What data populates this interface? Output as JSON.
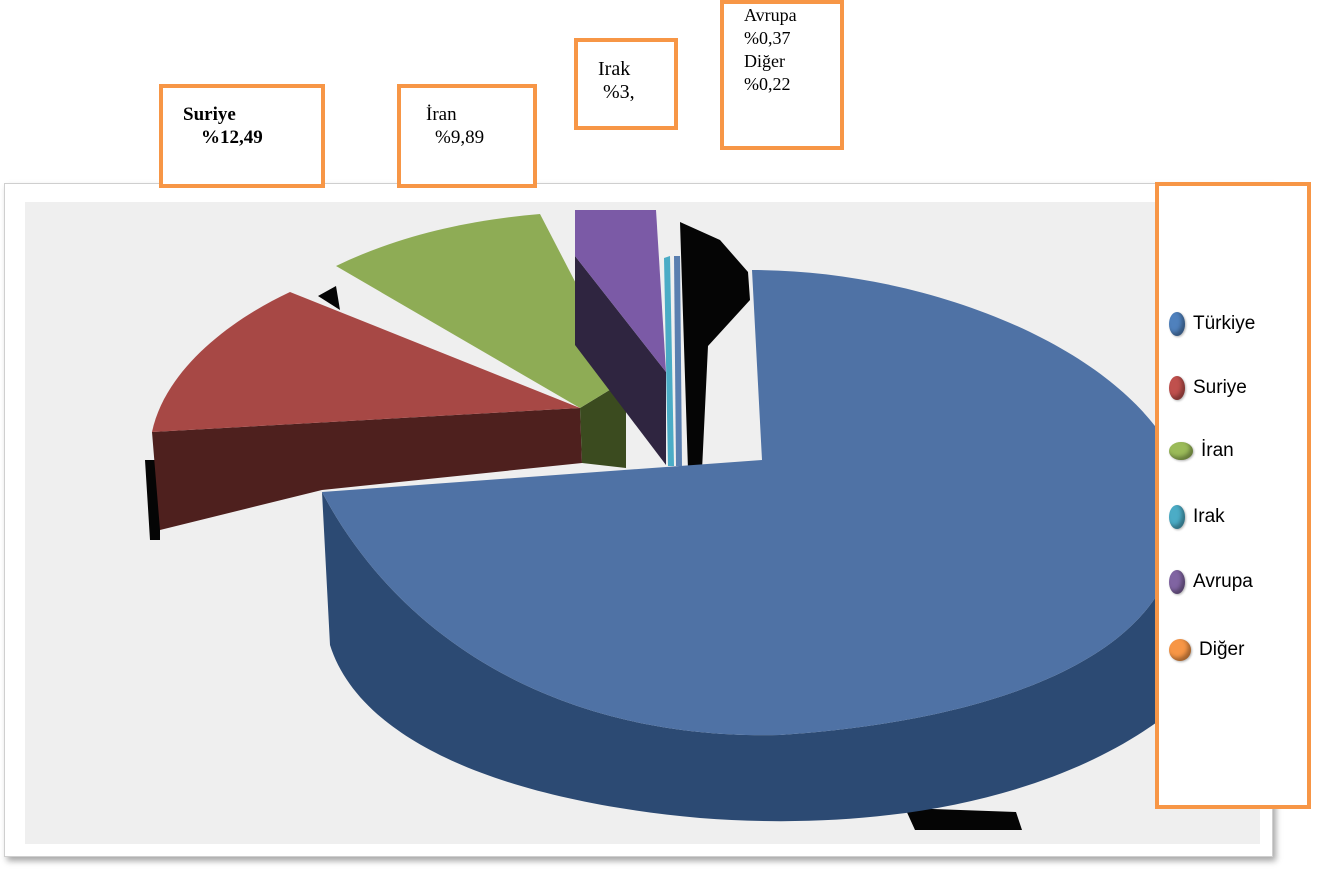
{
  "chart_data": {
    "type": "pie",
    "title": "",
    "slices": [
      {
        "label": "Türkiye",
        "value": null,
        "color": "#4f81bd"
      },
      {
        "label": "Suriye",
        "value": 12.49,
        "color": "#c0504d"
      },
      {
        "label": "İran",
        "value": 9.89,
        "color": "#9bbb59"
      },
      {
        "label": "Irak",
        "value": 3,
        "color": "#4bacc6"
      },
      {
        "label": "Avrupa",
        "value": 0.37,
        "color": "#8064a2"
      },
      {
        "label": "Diğer",
        "value": 0.22,
        "color": "#f79646"
      }
    ],
    "legend_position": "right",
    "exploded": true,
    "three_d": true
  },
  "callouts": {
    "suriye": {
      "name": "Suriye",
      "value": "%12,49"
    },
    "iran": {
      "name": "İran",
      "value": "%9,89"
    },
    "irak": {
      "name": "Irak",
      "value": "%3,"
    },
    "avrupa": {
      "name": "Avrupa",
      "value": "%0,37"
    },
    "diger": {
      "name": "Diğer",
      "value": "%0,22"
    }
  },
  "legend": {
    "items": [
      {
        "label": "Türkiye",
        "color": "#4f81bd"
      },
      {
        "label": "Suriye",
        "color": "#c0504d"
      },
      {
        "label": "İran",
        "color": "#9bbb59"
      },
      {
        "label": "Irak",
        "color": "#4bacc6"
      },
      {
        "label": "Avrupa",
        "color": "#8064a2"
      },
      {
        "label": "Diğer",
        "color": "#f79646"
      }
    ]
  }
}
